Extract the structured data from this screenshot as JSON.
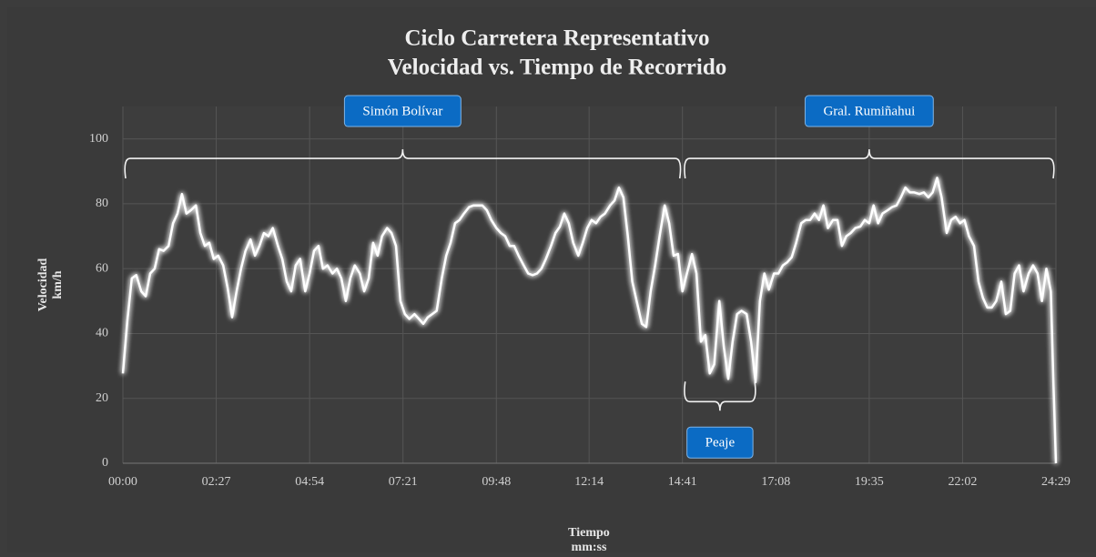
{
  "chart_data": {
    "type": "line",
    "title": "Ciclo Carretera Representativo",
    "subtitle": "Velocidad vs. Tiempo de Recorrido",
    "xlabel": "Tiempo",
    "xlabel_unit": "mm:ss",
    "ylabel": "Velocidad",
    "ylabel_unit": "km/h",
    "xlim": [
      0,
      1469
    ],
    "ylim": [
      0,
      110
    ],
    "xticks": [
      {
        "value": 0,
        "label": "00:00"
      },
      {
        "value": 147,
        "label": "02:27"
      },
      {
        "value": 294,
        "label": "04:54"
      },
      {
        "value": 441,
        "label": "07:21"
      },
      {
        "value": 588,
        "label": "09:48"
      },
      {
        "value": 734,
        "label": "12:14"
      },
      {
        "value": 881,
        "label": "14:41"
      },
      {
        "value": 1028,
        "label": "17:08"
      },
      {
        "value": 1175,
        "label": "19:35"
      },
      {
        "value": 1322,
        "label": "22:02"
      },
      {
        "value": 1469,
        "label": "24:29"
      }
    ],
    "yticks": [
      0,
      20,
      40,
      60,
      80,
      100
    ],
    "grid": true,
    "x": [
      0,
      7,
      14,
      21,
      29,
      36,
      43,
      50,
      57,
      64,
      72,
      79,
      86,
      93,
      100,
      107,
      115,
      122,
      129,
      136,
      143,
      150,
      158,
      165,
      172,
      179,
      186,
      193,
      201,
      208,
      215,
      222,
      229,
      236,
      244,
      251,
      258,
      265,
      272,
      279,
      287,
      294,
      301,
      308,
      315,
      322,
      330,
      337,
      344,
      351,
      358,
      365,
      373,
      380,
      387,
      394,
      401,
      408,
      416,
      423,
      430,
      437,
      444,
      451,
      459,
      466,
      473,
      480,
      487,
      494,
      502,
      509,
      516,
      523,
      530,
      537,
      545,
      552,
      559,
      566,
      573,
      580,
      588,
      595,
      602,
      609,
      616,
      623,
      631,
      638,
      645,
      652,
      659,
      666,
      674,
      681,
      688,
      695,
      702,
      709,
      717,
      724,
      731,
      738,
      745,
      752,
      759,
      767,
      774,
      781,
      788,
      795,
      802,
      810,
      817,
      824,
      831,
      838,
      845,
      853,
      860,
      867,
      874,
      881,
      888,
      896,
      903,
      910,
      917,
      924,
      931,
      939,
      946,
      953,
      960,
      967,
      974,
      982,
      989,
      996,
      1003,
      1010,
      1017,
      1025,
      1032,
      1039,
      1046,
      1053,
      1060,
      1068,
      1075,
      1082,
      1089,
      1096,
      1103,
      1110,
      1118,
      1125,
      1132,
      1139,
      1146,
      1153,
      1161,
      1168,
      1175,
      1182,
      1189,
      1196,
      1204,
      1211,
      1218,
      1225,
      1232,
      1239,
      1246,
      1254,
      1261,
      1268,
      1275,
      1282,
      1289,
      1297,
      1304,
      1311,
      1318,
      1325,
      1332,
      1340,
      1347,
      1354,
      1361,
      1368,
      1375,
      1383,
      1390,
      1397,
      1404,
      1411,
      1418,
      1426,
      1433,
      1440,
      1447,
      1454,
      1461,
      1465,
      1469
    ],
    "series": [
      {
        "color": "#ffffff",
        "values": [
          27.7,
          44,
          57,
          58,
          53,
          51.5,
          58.5,
          60,
          66,
          65.5,
          67,
          74,
          77,
          83,
          77,
          78,
          79.5,
          71,
          67,
          68,
          63,
          64,
          61,
          54,
          45,
          53,
          60,
          65.5,
          69,
          64,
          67,
          71,
          70,
          72.5,
          67,
          63,
          56,
          53,
          61,
          63,
          53,
          58.5,
          65.5,
          67,
          60,
          61,
          58.5,
          60,
          57,
          50,
          57,
          61,
          58.5,
          53,
          57,
          68,
          64,
          70,
          72.5,
          71,
          67,
          50,
          46,
          44.5,
          46,
          44.5,
          43,
          45,
          46,
          47,
          57,
          64,
          68,
          74,
          75,
          77,
          79,
          79.5,
          79.5,
          79.5,
          78,
          75,
          72.5,
          71,
          70,
          67,
          67,
          64,
          61,
          58.5,
          58,
          58.5,
          60,
          63,
          67,
          71,
          73,
          77,
          74,
          68,
          64,
          68,
          72.5,
          75,
          74,
          76,
          77,
          79.5,
          81,
          85,
          82,
          70,
          56,
          49,
          43,
          42,
          53,
          61,
          70,
          79.5,
          74,
          64,
          64.5,
          53,
          58.5,
          64.5,
          58.5,
          37.5,
          39.5,
          27.7,
          30.5,
          50,
          36,
          26,
          37.5,
          46,
          47,
          46,
          37.5,
          25,
          50,
          58.5,
          53.5,
          58.5,
          58.5,
          61,
          62,
          63.5,
          68,
          74,
          75,
          75,
          77,
          75,
          79.5,
          72.5,
          75,
          75,
          67,
          70,
          71,
          72.5,
          73,
          75,
          74,
          79.5,
          74,
          77,
          78,
          79,
          79.5,
          82,
          85,
          83.5,
          83.5,
          83,
          83.5,
          82,
          83.5,
          88,
          82,
          71,
          75,
          76,
          74,
          75,
          70,
          67,
          56,
          51,
          48,
          48,
          50,
          56,
          46,
          47,
          58.5,
          61,
          53,
          58.5,
          61,
          58.5,
          50,
          60,
          53,
          25,
          0
        ]
      }
    ],
    "annotations": [
      {
        "text": "Simón Bolívar",
        "x_range": [
          0,
          881
        ],
        "y": 94
      },
      {
        "text": "Gral. Rumiñahui",
        "x_range": [
          881,
          1469
        ],
        "y": 94
      },
      {
        "text": "Peaje",
        "x_range": [
          881,
          999
        ],
        "y": 19
      }
    ]
  }
}
